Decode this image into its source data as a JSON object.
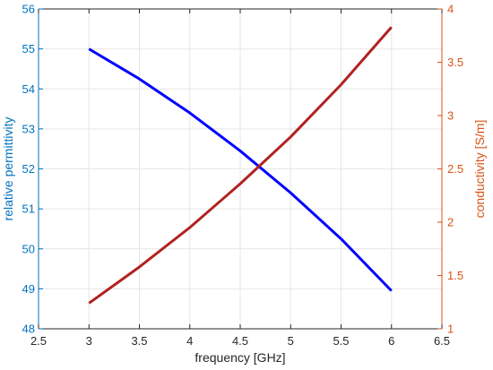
{
  "chart_data": {
    "type": "line",
    "title": "",
    "xlabel": "frequency [GHz]",
    "ylabel_left": "relative permittivity",
    "ylabel_right": "conductivity [S/m]",
    "xlim": [
      2.5,
      6.5
    ],
    "xticks": [
      2.5,
      3,
      3.5,
      4,
      4.5,
      5,
      5.5,
      6,
      6.5
    ],
    "ylim_left": [
      48,
      56
    ],
    "yticks_left": [
      48,
      49,
      50,
      51,
      52,
      53,
      54,
      55,
      56
    ],
    "ylim_right": [
      1,
      4
    ],
    "yticks_right": [
      1,
      1.5,
      2,
      2.5,
      3,
      3.5,
      4
    ],
    "grid": true,
    "colors": {
      "left_axis": "#0072bd",
      "right_axis": "#d95319",
      "series_permittivity": "#0000ff",
      "series_conductivity": "#b22222",
      "grid": "#e6e6e6",
      "x_axis": "#262626"
    },
    "series": [
      {
        "axis": "left",
        "x": [
          3.0,
          3.5,
          4.0,
          4.5,
          5.0,
          5.5,
          6.0
        ],
        "values": [
          55.0,
          54.25,
          53.4,
          52.45,
          51.4,
          50.25,
          48.95
        ]
      },
      {
        "axis": "right",
        "x": [
          3.0,
          3.5,
          4.0,
          4.5,
          5.0,
          5.5,
          6.0
        ],
        "values": [
          1.24,
          1.58,
          1.95,
          2.36,
          2.8,
          3.29,
          3.83
        ]
      }
    ]
  }
}
